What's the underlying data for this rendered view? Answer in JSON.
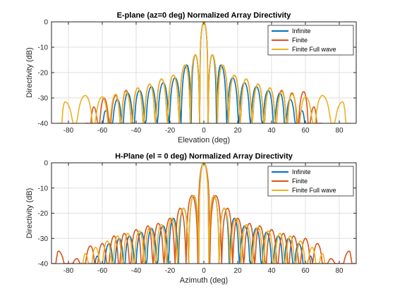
{
  "chart_data": [
    {
      "type": "line",
      "title": "E-plane (az=0 deg) Normalized Array Directivity",
      "xlabel": "Elevation (deg)",
      "ylabel": "Directivity (dB)",
      "xlim": [
        -90,
        90
      ],
      "ylim": [
        -40,
        0
      ],
      "xticks": [
        -80,
        -60,
        -40,
        -20,
        0,
        20,
        40,
        60,
        80
      ],
      "yticks": [
        0,
        -10,
        -20,
        -30,
        -40
      ],
      "grid": true,
      "legend_position": "top-right",
      "series": [
        {
          "name": "Infinite",
          "color": "#0072BD",
          "peaks": [
            [
              -58,
              -35
            ],
            [
              -51,
              -30.5
            ],
            [
              -45,
              -28
            ],
            [
              -38,
              -27
            ],
            [
              -31,
              -25.5
            ],
            [
              -24,
              -24
            ],
            [
              -17,
              -22
            ],
            [
              -10,
              -17
            ],
            [
              -5,
              -13
            ],
            [
              0,
              0
            ],
            [
              5,
              -13
            ],
            [
              10,
              -17
            ],
            [
              17,
              -22
            ],
            [
              24,
              -24
            ],
            [
              31,
              -25.5
            ],
            [
              38,
              -27
            ],
            [
              45,
              -28
            ],
            [
              51,
              -30.5
            ],
            [
              58,
              -35
            ]
          ]
        },
        {
          "name": "Finite",
          "color": "#D95319",
          "peaks": [
            [
              -65,
              -33.5
            ],
            [
              -59,
              -30
            ],
            [
              -52,
              -29
            ],
            [
              -46,
              -27
            ],
            [
              -39,
              -26
            ],
            [
              -32,
              -24.5
            ],
            [
              -25,
              -22.5
            ],
            [
              -18,
              -21
            ],
            [
              -11,
              -17
            ],
            [
              -5,
              -13
            ],
            [
              0,
              0
            ],
            [
              5,
              -13
            ],
            [
              11,
              -17
            ],
            [
              18,
              -21
            ],
            [
              25,
              -22.5
            ],
            [
              32,
              -24.5
            ],
            [
              39,
              -26
            ],
            [
              46,
              -27
            ],
            [
              52,
              -28
            ],
            [
              59,
              -27.5
            ],
            [
              65,
              -33.5
            ]
          ]
        },
        {
          "name": "Finite Full wave",
          "color": "#EDB120",
          "peaks": [
            [
              -82,
              -31.5
            ],
            [
              -70,
              -29
            ],
            [
              -60,
              -29.5
            ],
            [
              -52,
              -28.5
            ],
            [
              -46,
              -27.5
            ],
            [
              -39,
              -26
            ],
            [
              -32,
              -24.5
            ],
            [
              -25,
              -22.5
            ],
            [
              -18,
              -21
            ],
            [
              -11,
              -17
            ],
            [
              -5,
              -13
            ],
            [
              0,
              0
            ],
            [
              5,
              -13
            ],
            [
              11,
              -17
            ],
            [
              18,
              -21
            ],
            [
              25,
              -22.5
            ],
            [
              32,
              -24.5
            ],
            [
              39,
              -26
            ],
            [
              46,
              -27.5
            ],
            [
              52,
              -28.5
            ],
            [
              60,
              -29.5
            ],
            [
              70,
              -29
            ],
            [
              82,
              -31.5
            ]
          ]
        }
      ]
    },
    {
      "type": "line",
      "title": "H-Plane (el = 0 deg) Normalized Array Directivity",
      "xlabel": "Azimuth (deg)",
      "ylabel": "Directivity (dB)",
      "xlim": [
        -90,
        90
      ],
      "ylim": [
        -40,
        0
      ],
      "xticks": [
        -80,
        -60,
        -40,
        -20,
        0,
        20,
        40,
        60,
        80
      ],
      "yticks": [
        0,
        -10,
        -20,
        -30,
        -40
      ],
      "grid": true,
      "legend_position": "top-right",
      "series": [
        {
          "name": "Infinite",
          "color": "#0072BD",
          "peaks": [
            [
              -63,
              -37
            ],
            [
              -56,
              -32
            ],
            [
              -50,
              -30
            ],
            [
              -44,
              -29
            ],
            [
              -37,
              -27.5
            ],
            [
              -31,
              -26
            ],
            [
              -24,
              -25
            ],
            [
              -18,
              -22
            ],
            [
              -12,
              -18
            ],
            [
              -6,
              -13
            ],
            [
              0,
              0
            ],
            [
              6,
              -13
            ],
            [
              12,
              -18
            ],
            [
              18,
              -22
            ],
            [
              24,
              -25
            ],
            [
              31,
              -26
            ],
            [
              37,
              -27.5
            ],
            [
              44,
              -29
            ],
            [
              50,
              -30
            ],
            [
              56,
              -32
            ],
            [
              63,
              -37
            ]
          ]
        },
        {
          "name": "Finite",
          "color": "#D95319",
          "peaks": [
            [
              -86,
              -35
            ],
            [
              -75,
              -38
            ],
            [
              -67,
              -33
            ],
            [
              -60,
              -32
            ],
            [
              -53,
              -29
            ],
            [
              -47,
              -28
            ],
            [
              -40,
              -26.5
            ],
            [
              -33,
              -25
            ],
            [
              -27,
              -24
            ],
            [
              -20,
              -22
            ],
            [
              -14,
              -18
            ],
            [
              -7,
              -13
            ],
            [
              0,
              0
            ],
            [
              7,
              -13
            ],
            [
              14,
              -18
            ],
            [
              20,
              -22
            ],
            [
              27,
              -24
            ],
            [
              33,
              -25
            ],
            [
              40,
              -26.5
            ],
            [
              47,
              -28
            ],
            [
              53,
              -29
            ],
            [
              60,
              -30
            ],
            [
              67,
              -32
            ],
            [
              75,
              -38
            ],
            [
              86,
              -35
            ]
          ]
        },
        {
          "name": "Finite Full wave",
          "color": "#EDB120",
          "peaks": [
            [
              -70,
              -36
            ],
            [
              -64,
              -33.5
            ],
            [
              -57,
              -31
            ],
            [
              -51,
              -29
            ],
            [
              -45,
              -28
            ],
            [
              -38,
              -27
            ],
            [
              -32,
              -25.5
            ],
            [
              -25,
              -24.5
            ],
            [
              -19,
              -22
            ],
            [
              -12,
              -18
            ],
            [
              -6,
              -13
            ],
            [
              0,
              0
            ],
            [
              6,
              -13
            ],
            [
              12,
              -18
            ],
            [
              19,
              -22
            ],
            [
              25,
              -24.5
            ],
            [
              32,
              -25.5
            ],
            [
              38,
              -27
            ],
            [
              45,
              -28
            ],
            [
              51,
              -29
            ],
            [
              57,
              -31
            ],
            [
              64,
              -33.5
            ],
            [
              70,
              -36
            ]
          ]
        }
      ]
    }
  ]
}
